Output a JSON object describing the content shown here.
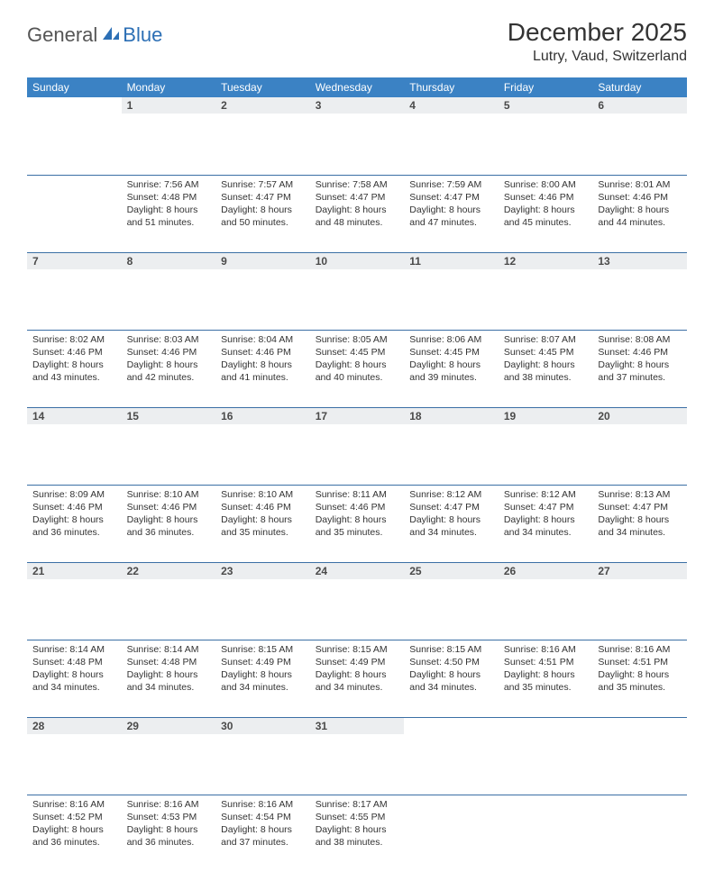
{
  "logo": {
    "text1": "General",
    "text2": "Blue"
  },
  "header": {
    "title": "December 2025",
    "location": "Lutry, Vaud, Switzerland"
  },
  "colors": {
    "header_bg": "#3b82c4",
    "header_text": "#ffffff",
    "daynum_bg": "#eceef0",
    "border": "#3b6fa5",
    "logo_blue": "#2c6fb5"
  },
  "weekdays": [
    "Sunday",
    "Monday",
    "Tuesday",
    "Wednesday",
    "Thursday",
    "Friday",
    "Saturday"
  ],
  "weeks": [
    [
      null,
      {
        "n": "1",
        "sr": "7:56 AM",
        "ss": "4:48 PM",
        "dl": "8 hours and 51 minutes."
      },
      {
        "n": "2",
        "sr": "7:57 AM",
        "ss": "4:47 PM",
        "dl": "8 hours and 50 minutes."
      },
      {
        "n": "3",
        "sr": "7:58 AM",
        "ss": "4:47 PM",
        "dl": "8 hours and 48 minutes."
      },
      {
        "n": "4",
        "sr": "7:59 AM",
        "ss": "4:47 PM",
        "dl": "8 hours and 47 minutes."
      },
      {
        "n": "5",
        "sr": "8:00 AM",
        "ss": "4:46 PM",
        "dl": "8 hours and 45 minutes."
      },
      {
        "n": "6",
        "sr": "8:01 AM",
        "ss": "4:46 PM",
        "dl": "8 hours and 44 minutes."
      }
    ],
    [
      {
        "n": "7",
        "sr": "8:02 AM",
        "ss": "4:46 PM",
        "dl": "8 hours and 43 minutes."
      },
      {
        "n": "8",
        "sr": "8:03 AM",
        "ss": "4:46 PM",
        "dl": "8 hours and 42 minutes."
      },
      {
        "n": "9",
        "sr": "8:04 AM",
        "ss": "4:46 PM",
        "dl": "8 hours and 41 minutes."
      },
      {
        "n": "10",
        "sr": "8:05 AM",
        "ss": "4:45 PM",
        "dl": "8 hours and 40 minutes."
      },
      {
        "n": "11",
        "sr": "8:06 AM",
        "ss": "4:45 PM",
        "dl": "8 hours and 39 minutes."
      },
      {
        "n": "12",
        "sr": "8:07 AM",
        "ss": "4:45 PM",
        "dl": "8 hours and 38 minutes."
      },
      {
        "n": "13",
        "sr": "8:08 AM",
        "ss": "4:46 PM",
        "dl": "8 hours and 37 minutes."
      }
    ],
    [
      {
        "n": "14",
        "sr": "8:09 AM",
        "ss": "4:46 PM",
        "dl": "8 hours and 36 minutes."
      },
      {
        "n": "15",
        "sr": "8:10 AM",
        "ss": "4:46 PM",
        "dl": "8 hours and 36 minutes."
      },
      {
        "n": "16",
        "sr": "8:10 AM",
        "ss": "4:46 PM",
        "dl": "8 hours and 35 minutes."
      },
      {
        "n": "17",
        "sr": "8:11 AM",
        "ss": "4:46 PM",
        "dl": "8 hours and 35 minutes."
      },
      {
        "n": "18",
        "sr": "8:12 AM",
        "ss": "4:47 PM",
        "dl": "8 hours and 34 minutes."
      },
      {
        "n": "19",
        "sr": "8:12 AM",
        "ss": "4:47 PM",
        "dl": "8 hours and 34 minutes."
      },
      {
        "n": "20",
        "sr": "8:13 AM",
        "ss": "4:47 PM",
        "dl": "8 hours and 34 minutes."
      }
    ],
    [
      {
        "n": "21",
        "sr": "8:14 AM",
        "ss": "4:48 PM",
        "dl": "8 hours and 34 minutes."
      },
      {
        "n": "22",
        "sr": "8:14 AM",
        "ss": "4:48 PM",
        "dl": "8 hours and 34 minutes."
      },
      {
        "n": "23",
        "sr": "8:15 AM",
        "ss": "4:49 PM",
        "dl": "8 hours and 34 minutes."
      },
      {
        "n": "24",
        "sr": "8:15 AM",
        "ss": "4:49 PM",
        "dl": "8 hours and 34 minutes."
      },
      {
        "n": "25",
        "sr": "8:15 AM",
        "ss": "4:50 PM",
        "dl": "8 hours and 34 minutes."
      },
      {
        "n": "26",
        "sr": "8:16 AM",
        "ss": "4:51 PM",
        "dl": "8 hours and 35 minutes."
      },
      {
        "n": "27",
        "sr": "8:16 AM",
        "ss": "4:51 PM",
        "dl": "8 hours and 35 minutes."
      }
    ],
    [
      {
        "n": "28",
        "sr": "8:16 AM",
        "ss": "4:52 PM",
        "dl": "8 hours and 36 minutes."
      },
      {
        "n": "29",
        "sr": "8:16 AM",
        "ss": "4:53 PM",
        "dl": "8 hours and 36 minutes."
      },
      {
        "n": "30",
        "sr": "8:16 AM",
        "ss": "4:54 PM",
        "dl": "8 hours and 37 minutes."
      },
      {
        "n": "31",
        "sr": "8:17 AM",
        "ss": "4:55 PM",
        "dl": "8 hours and 38 minutes."
      },
      null,
      null,
      null
    ]
  ],
  "labels": {
    "sunrise": "Sunrise:",
    "sunset": "Sunset:",
    "daylight": "Daylight:"
  }
}
